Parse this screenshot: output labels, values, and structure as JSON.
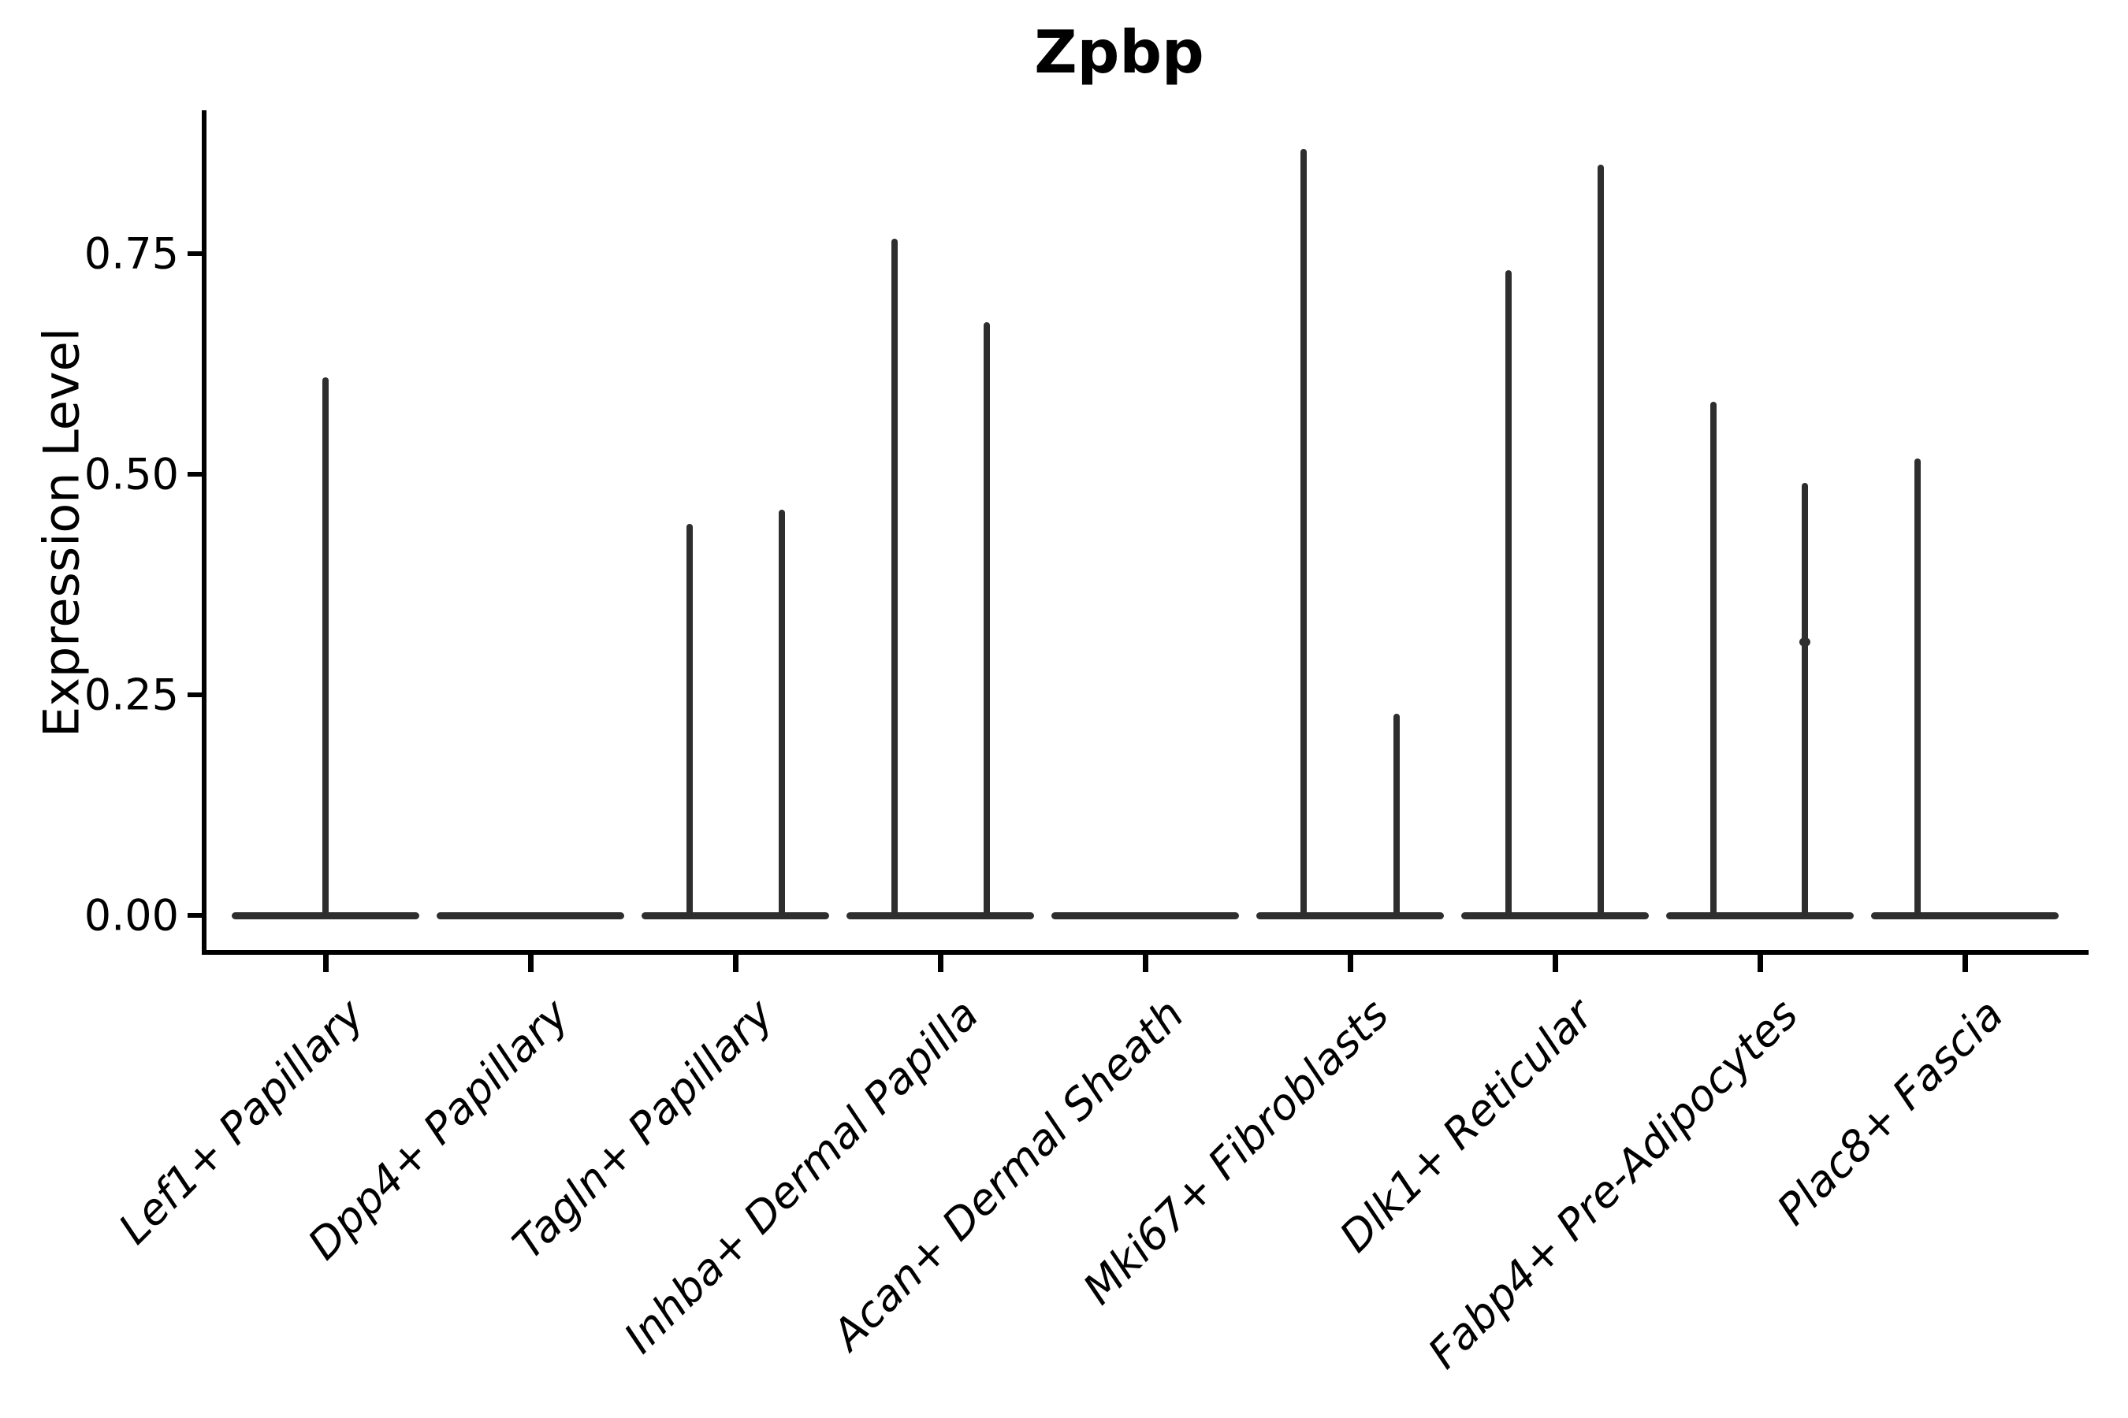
{
  "chart_data": {
    "type": "violin",
    "title": "Zpbp",
    "xlabel": "",
    "ylabel": "Expression Level",
    "ylim": [
      0,
      0.91
    ],
    "grid": false,
    "legend": "none",
    "violin_color": "#2e2e2e",
    "axis_color": "#000000",
    "yticks": [
      {
        "value": 0.0,
        "label": "0.00"
      },
      {
        "value": 0.25,
        "label": "0.25"
      },
      {
        "value": 0.5,
        "label": "0.50"
      },
      {
        "value": 0.75,
        "label": "0.75"
      }
    ],
    "categories": [
      {
        "label": "Lef1+ Papillary",
        "spikes": [
          {
            "offset": 0,
            "max": 0.61
          }
        ]
      },
      {
        "label": "Dpp4+ Papillary",
        "spikes": []
      },
      {
        "label": "Tagln+ Papillary",
        "spikes": [
          {
            "offset": -58,
            "max": 0.444
          },
          {
            "offset": 59,
            "max": 0.46
          }
        ]
      },
      {
        "label": "Inhba+ Dermal Papilla",
        "spikes": [
          {
            "offset": -58,
            "max": 0.767
          },
          {
            "offset": 59,
            "max": 0.672
          }
        ]
      },
      {
        "label": "Acan+ Dermal Sheath",
        "spikes": []
      },
      {
        "label": "Mki67+ Fibroblasts",
        "spikes": [
          {
            "offset": -59,
            "max": 0.869
          },
          {
            "offset": 59,
            "max": 0.229
          }
        ]
      },
      {
        "label": "Dlk1+ Reticular",
        "spikes": [
          {
            "offset": -59,
            "max": 0.731
          },
          {
            "offset": 58,
            "max": 0.851
          }
        ]
      },
      {
        "label": "Fabp4+ Pre-Adipocytes",
        "spikes": [
          {
            "offset": -59,
            "max": 0.582
          },
          {
            "offset": 57,
            "max": 0.49,
            "nodes": [
              0.31
            ]
          }
        ]
      },
      {
        "label": "Plac8+ Fascia",
        "spikes": [
          {
            "offset": -60,
            "max": 0.518
          }
        ]
      }
    ]
  }
}
